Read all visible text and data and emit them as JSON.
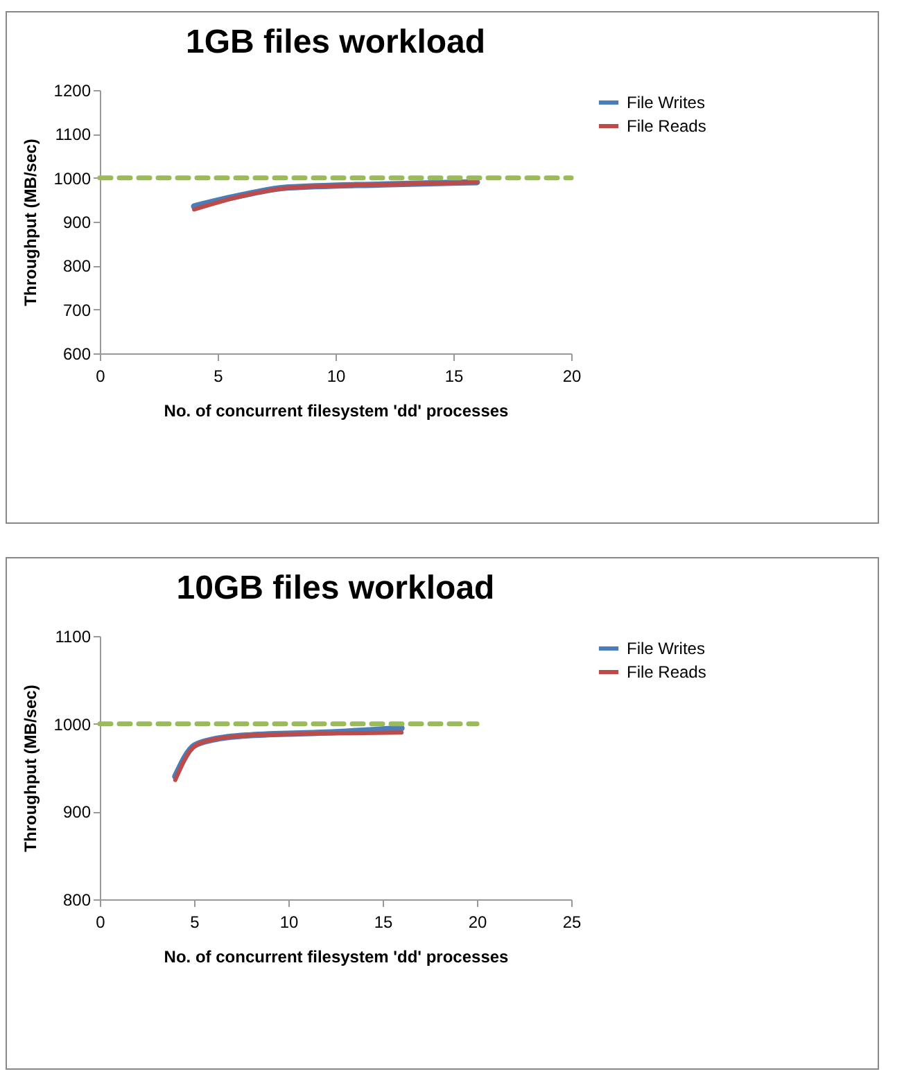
{
  "chart_data": [
    {
      "type": "line",
      "title": "1GB files workload",
      "xlabel": "No. of concurrent filesystem 'dd' processes",
      "ylabel": "Throughput (MB/sec)",
      "xlim": [
        0,
        20
      ],
      "xticks": [
        0,
        5,
        10,
        15,
        20
      ],
      "ylim": [
        600,
        1200
      ],
      "yticks": [
        600,
        700,
        800,
        900,
        1000,
        1100,
        1200
      ],
      "legend": "right",
      "series": [
        {
          "name": "File Writes",
          "color": "#4a7ebb",
          "x": [
            4,
            6,
            8,
            12,
            16
          ],
          "values": [
            935,
            960,
            978,
            985,
            990
          ]
        },
        {
          "name": "File Reads",
          "color": "#be4b48",
          "x": [
            4,
            6,
            8,
            12,
            16
          ],
          "values": [
            928,
            958,
            977,
            985,
            990
          ]
        },
        {
          "color": "#9bbb59",
          "line_style": "dashed",
          "x": [
            0,
            20
          ],
          "values": [
            1000,
            1000
          ]
        }
      ]
    },
    {
      "type": "line",
      "title": "10GB files workload",
      "xlabel": "No. of concurrent filesystem 'dd' processes",
      "ylabel": "Throughput (MB/sec)",
      "xlim": [
        0,
        25
      ],
      "xticks": [
        0,
        5,
        10,
        15,
        20,
        25
      ],
      "ylim": [
        800,
        1100
      ],
      "yticks": [
        800,
        900,
        1000,
        1100
      ],
      "legend": "right",
      "series": [
        {
          "name": "File Writes",
          "color": "#4a7ebb",
          "x": [
            4,
            5,
            6,
            8,
            12,
            16
          ],
          "values": [
            940,
            975,
            982,
            987,
            990,
            995
          ]
        },
        {
          "name": "File Reads",
          "color": "#be4b48",
          "x": [
            4,
            5,
            6,
            8,
            12,
            16
          ],
          "values": [
            936,
            974,
            982,
            987,
            989,
            990
          ]
        },
        {
          "color": "#9bbb59",
          "line_style": "dashed",
          "x": [
            0,
            20
          ],
          "values": [
            1000,
            1000
          ]
        }
      ]
    }
  ]
}
